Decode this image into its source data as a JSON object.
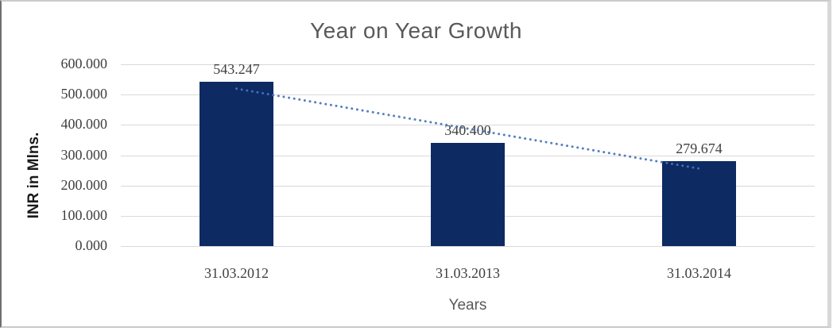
{
  "chart_data": {
    "type": "bar",
    "title": "Year on Year Growth",
    "xlabel": "Years",
    "ylabel": "INR in Mlns.",
    "categories": [
      "31.03.2012",
      "31.03.2013",
      "31.03.2014"
    ],
    "series": [
      {
        "name": "INR in Mlns.",
        "values": [
          543.247,
          340.4,
          279.674
        ],
        "value_labels": [
          "543.247",
          "340.400",
          "279.674"
        ]
      }
    ],
    "trendline": {
      "kind": "linear",
      "style": "dotted"
    },
    "ylim": [
      0,
      600
    ],
    "yticks": [
      0,
      100,
      200,
      300,
      400,
      500,
      600
    ],
    "ytick_labels": [
      "0.000",
      "100.000",
      "200.000",
      "300.000",
      "400.000",
      "500.000",
      "600.000"
    ],
    "grid": true,
    "legend": "none",
    "colors": {
      "bar": "#0d2a63",
      "trendline": "#4574ba",
      "gridline": "#d9d9d9",
      "title_text": "#595959",
      "axis_text": "#3f3f3f"
    }
  }
}
